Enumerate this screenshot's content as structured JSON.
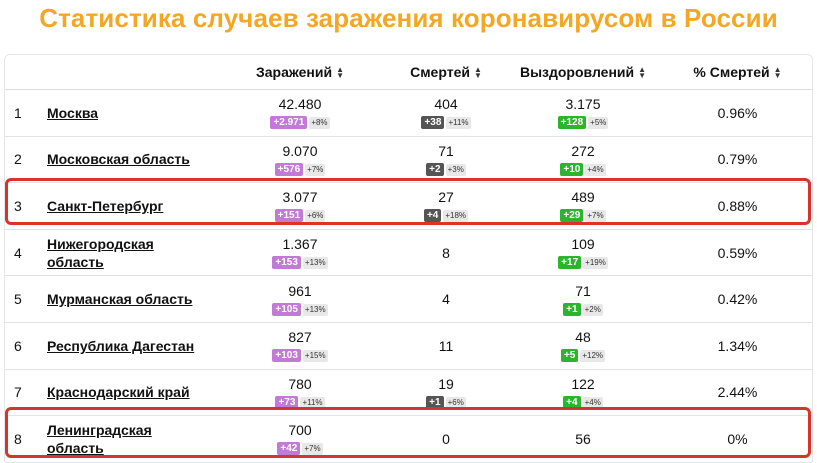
{
  "title": "Статистика случаев заражения коронавирусом в России",
  "headers": {
    "infected": "Заражений",
    "deaths": "Смертей",
    "recovered": "Выздоровлений",
    "death_rate": "% Смертей"
  },
  "icons": {
    "sort": "sort-arrows-icon"
  },
  "colors": {
    "title": "#f5a623",
    "infected_badge": "#c27ad6",
    "deaths_badge": "#555555",
    "recovered_badge": "#2bb52b",
    "highlight": "#d9342b"
  },
  "rows": [
    {
      "rank": "1",
      "region": "Москва",
      "infected": "42.480",
      "infected_delta": "+2.971",
      "infected_pct": "+8%",
      "deaths": "404",
      "deaths_delta": "+38",
      "deaths_pct": "+11%",
      "recovered": "3.175",
      "recovered_delta": "+128",
      "recovered_pct": "+5%",
      "death_rate": "0.96%"
    },
    {
      "rank": "2",
      "region": "Московская область",
      "infected": "9.070",
      "infected_delta": "+576",
      "infected_pct": "+7%",
      "deaths": "71",
      "deaths_delta": "+2",
      "deaths_pct": "+3%",
      "recovered": "272",
      "recovered_delta": "+10",
      "recovered_pct": "+4%",
      "death_rate": "0.79%"
    },
    {
      "rank": "3",
      "region": "Санкт-Петербург",
      "infected": "3.077",
      "infected_delta": "+151",
      "infected_pct": "+6%",
      "deaths": "27",
      "deaths_delta": "+4",
      "deaths_pct": "+18%",
      "recovered": "489",
      "recovered_delta": "+29",
      "recovered_pct": "+7%",
      "death_rate": "0.88%"
    },
    {
      "rank": "4",
      "region": "Нижегородская область",
      "infected": "1.367",
      "infected_delta": "+153",
      "infected_pct": "+13%",
      "deaths": "8",
      "deaths_delta": "",
      "deaths_pct": "",
      "recovered": "109",
      "recovered_delta": "+17",
      "recovered_pct": "+19%",
      "death_rate": "0.59%"
    },
    {
      "rank": "5",
      "region": "Мурманская область",
      "infected": "961",
      "infected_delta": "+105",
      "infected_pct": "+13%",
      "deaths": "4",
      "deaths_delta": "",
      "deaths_pct": "",
      "recovered": "71",
      "recovered_delta": "+1",
      "recovered_pct": "+2%",
      "death_rate": "0.42%"
    },
    {
      "rank": "6",
      "region": "Республика Дагестан",
      "infected": "827",
      "infected_delta": "+103",
      "infected_pct": "+15%",
      "deaths": "11",
      "deaths_delta": "",
      "deaths_pct": "",
      "recovered": "48",
      "recovered_delta": "+5",
      "recovered_pct": "+12%",
      "death_rate": "1.34%"
    },
    {
      "rank": "7",
      "region": "Краснодарский край",
      "infected": "780",
      "infected_delta": "+73",
      "infected_pct": "+11%",
      "deaths": "19",
      "deaths_delta": "+1",
      "deaths_pct": "+6%",
      "recovered": "122",
      "recovered_delta": "+4",
      "recovered_pct": "+4%",
      "death_rate": "2.44%"
    },
    {
      "rank": "8",
      "region": "Ленинградская область",
      "infected": "700",
      "infected_delta": "+42",
      "infected_pct": "+7%",
      "deaths": "0",
      "deaths_delta": "",
      "deaths_pct": "",
      "recovered": "56",
      "recovered_delta": "",
      "recovered_pct": "",
      "death_rate": "0%"
    }
  ]
}
